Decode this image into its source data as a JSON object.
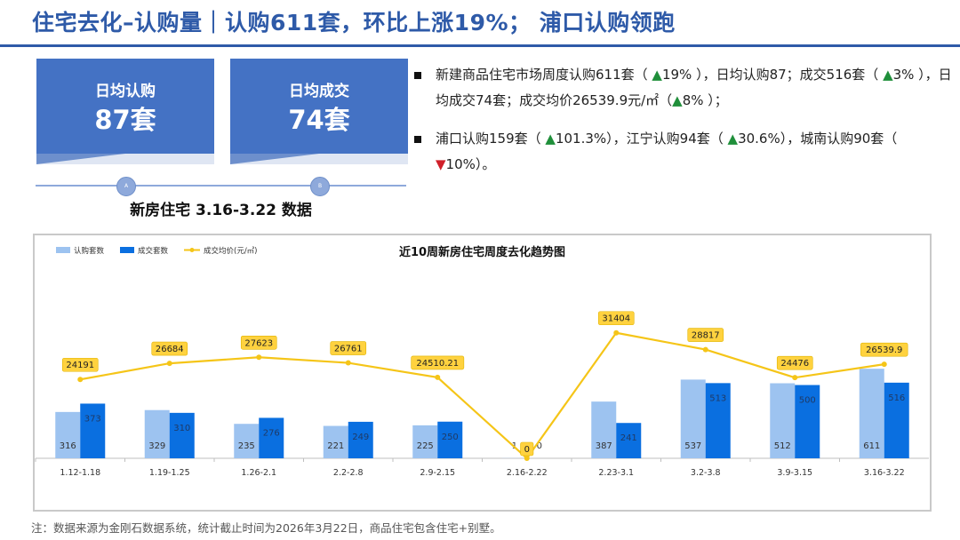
{
  "header": {
    "title": "住宅去化–认购量｜认购611套，环比上涨19%； 浦口认购领跑"
  },
  "kpis": [
    {
      "label": "日均认购",
      "value": "87套"
    },
    {
      "label": "日均成交",
      "value": "74套"
    }
  ],
  "timeline": {
    "dots": [
      "A",
      "B"
    ],
    "label": "新房住宅 3.16-3.22 数据"
  },
  "bullets": {
    "b1": {
      "p1": "新建商品住宅市场周度认购611套（ ",
      "a1": "▲",
      "v1": "19%",
      "p2": " ），日均认购87；成交516套（ ",
      "a2": "▲",
      "v2": "3%",
      "p3": " ），日均成交74套；成交均价26539.9元/㎡（",
      "a3": "▲",
      "v3": "8%",
      "p4": " ）；"
    },
    "b2": {
      "p1": "浦口认购159套（ ",
      "a1": "▲",
      "v1": "101.3%",
      "p2": "），江宁认购94套（ ",
      "a2": "▲",
      "v2": "30.6%",
      "p3": "），城南认购90套（ ",
      "a3": "▼",
      "v3": "10%",
      "p4": "）。"
    }
  },
  "chart_data": {
    "type": "bar",
    "title": "近10周新房住宅周度去化趋势图",
    "categories": [
      "1.12-1.18",
      "1.19-1.25",
      "1.26-2.1",
      "2.2-2.8",
      "2.9-2.15",
      "2.16-2.22",
      "2.23-3.1",
      "3.2-3.8",
      "3.9-3.15",
      "3.16-3.22"
    ],
    "series": [
      {
        "name": "认购套数",
        "kind": "bar",
        "color": "#9dc3f0",
        "values": [
          316,
          329,
          235,
          221,
          225,
          1,
          387,
          537,
          512,
          611
        ],
        "value_labels": [
          "316",
          "329",
          "235",
          "221",
          "225",
          "1",
          "387",
          "537",
          "512",
          "611"
        ]
      },
      {
        "name": "成交套数",
        "kind": "bar",
        "color": "#0a6fe0",
        "values": [
          373,
          310,
          276,
          249,
          250,
          0,
          241,
          513,
          500,
          516
        ],
        "value_labels": [
          "373",
          "310",
          "276",
          "249",
          "250",
          "0",
          "241",
          "513",
          "500",
          "516"
        ]
      },
      {
        "name": "成交均价(元/㎡)",
        "kind": "line",
        "color": "#f5c518",
        "values": [
          24191,
          26684,
          27623,
          26761,
          24510.21,
          0,
          31404,
          28817,
          24476,
          26539.9
        ],
        "value_labels": [
          "24191",
          "26684",
          "27623",
          "26761",
          "24510.21",
          "0",
          "31404",
          "28817",
          "24476",
          "26539.9"
        ]
      }
    ],
    "legend_position": "top-left",
    "grid": false
  },
  "footnote": "注：数据来源为金刚石数据系统，统计截止时间为2026年3月22日，商品住宅包含住宅+别墅。"
}
